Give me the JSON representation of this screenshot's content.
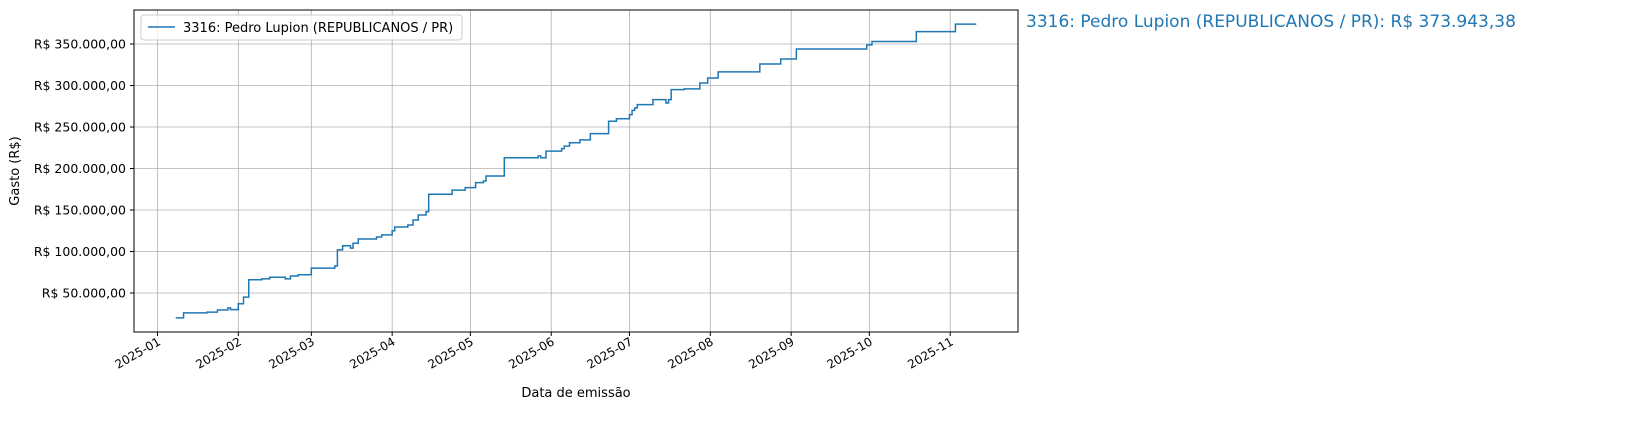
{
  "chart_data": {
    "type": "line",
    "step": "post",
    "xlabel": "Data de emissão",
    "ylabel": "Gasto (R$)",
    "x_ticks": [
      "2025-01",
      "2025-02",
      "2025-03",
      "2025-04",
      "2025-05",
      "2025-06",
      "2025-07",
      "2025-08",
      "2025-09",
      "2025-10",
      "2025-11"
    ],
    "y_ticks": [
      50000,
      100000,
      150000,
      200000,
      250000,
      300000,
      350000
    ],
    "y_tick_labels": [
      "R$ 50.000,00",
      "R$ 100.000,00",
      "R$ 150.000,00",
      "R$ 200.000,00",
      "R$ 250.000,00",
      "R$ 300.000,00",
      "R$ 350.000,00"
    ],
    "xlim": [
      "2024-12-23",
      "2025-11-27"
    ],
    "ylim": [
      3000,
      391000
    ],
    "grid": true,
    "legend_position": "top-left",
    "annotation": "3316: Pedro Lupion (REPUBLICANOS / PR): R$ 373.943,38",
    "series": [
      {
        "name": "3316: Pedro Lupion (REPUBLICANOS / PR)",
        "color": "#1f77b4",
        "points": [
          [
            "2025-01-08",
            20000
          ],
          [
            "2025-01-11",
            26000
          ],
          [
            "2025-01-20",
            27000
          ],
          [
            "2025-01-24",
            29500
          ],
          [
            "2025-01-28",
            32000
          ],
          [
            "2025-01-29",
            30000
          ],
          [
            "2025-02-01",
            37000
          ],
          [
            "2025-02-03",
            45000
          ],
          [
            "2025-02-05",
            66000
          ],
          [
            "2025-02-10",
            67000
          ],
          [
            "2025-02-13",
            69000
          ],
          [
            "2025-02-19",
            67000
          ],
          [
            "2025-02-21",
            70500
          ],
          [
            "2025-02-24",
            72000
          ],
          [
            "2025-03-01",
            80000
          ],
          [
            "2025-03-10",
            82500
          ],
          [
            "2025-03-11",
            102000
          ],
          [
            "2025-03-13",
            107000
          ],
          [
            "2025-03-16",
            104000
          ],
          [
            "2025-03-17",
            110000
          ],
          [
            "2025-03-19",
            115000
          ],
          [
            "2025-03-26",
            117500
          ],
          [
            "2025-03-28",
            120000
          ],
          [
            "2025-04-01",
            125000
          ],
          [
            "2025-04-02",
            129500
          ],
          [
            "2025-04-07",
            132000
          ],
          [
            "2025-04-09",
            138000
          ],
          [
            "2025-04-11",
            144000
          ],
          [
            "2025-04-14",
            148000
          ],
          [
            "2025-04-15",
            169000
          ],
          [
            "2025-04-24",
            174000
          ],
          [
            "2025-04-29",
            177000
          ],
          [
            "2025-05-03",
            183000
          ],
          [
            "2025-05-06",
            185000
          ],
          [
            "2025-05-07",
            191000
          ],
          [
            "2025-05-14",
            213000
          ],
          [
            "2025-05-27",
            215000
          ],
          [
            "2025-05-28",
            213000
          ],
          [
            "2025-05-30",
            221000
          ],
          [
            "2025-06-05",
            224000
          ],
          [
            "2025-06-06",
            227000
          ],
          [
            "2025-06-08",
            231000
          ],
          [
            "2025-06-12",
            234500
          ],
          [
            "2025-06-16",
            242000
          ],
          [
            "2025-06-23",
            257000
          ],
          [
            "2025-06-26",
            260000
          ],
          [
            "2025-07-01",
            265000
          ],
          [
            "2025-07-02",
            270000
          ],
          [
            "2025-07-03",
            273000
          ],
          [
            "2025-07-04",
            277000
          ],
          [
            "2025-07-10",
            283000
          ],
          [
            "2025-07-15",
            279000
          ],
          [
            "2025-07-16",
            283000
          ],
          [
            "2025-07-17",
            295000
          ],
          [
            "2025-07-22",
            296000
          ],
          [
            "2025-07-28",
            303000
          ],
          [
            "2025-07-31",
            309000
          ],
          [
            "2025-08-04",
            316500
          ],
          [
            "2025-08-20",
            326000
          ],
          [
            "2025-08-28",
            332000
          ],
          [
            "2025-09-03",
            344000
          ],
          [
            "2025-09-30",
            349000
          ],
          [
            "2025-10-02",
            353000
          ],
          [
            "2025-10-19",
            365000
          ],
          [
            "2025-11-03",
            373943.38
          ],
          [
            "2025-11-11",
            373943.38
          ]
        ]
      }
    ]
  }
}
